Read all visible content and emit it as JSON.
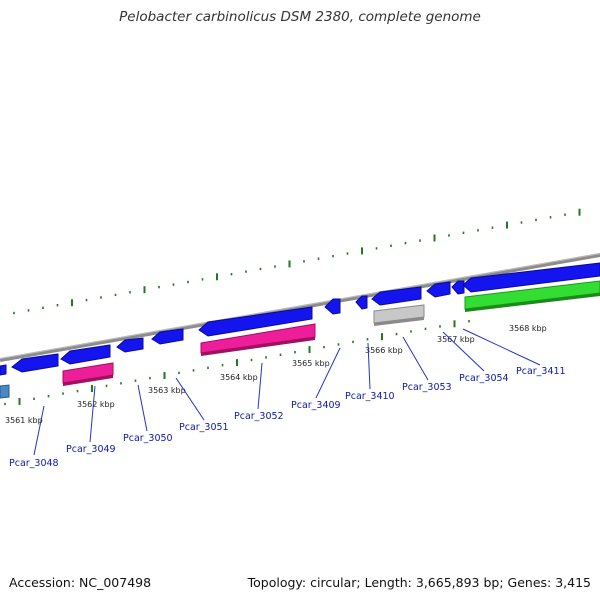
{
  "title": "Pelobacter carbinolicus DSM 2380, complete genome",
  "footer": {
    "accession": "Accession: NC_007498",
    "topology": "Topology: circular; Length: 3,665,893 bp; Genes: 3,415"
  },
  "colors": {
    "backbone": "#8c8c8c",
    "tick": "#1f7a1f",
    "forward_gene": "#33dd33",
    "reverse_gene": "#1414ee",
    "rna_gene": "#ee1e9a",
    "pseudo_gene": "#c8c8c8",
    "label_line": "#2233cc",
    "edge_gene": "#4a87c4"
  },
  "kbp_labels": [
    "3561 kbp",
    "3562 kbp",
    "3563 kbp",
    "3564 kbp",
    "3565 kbp",
    "3566 kbp",
    "3567 kbp",
    "3568 kbp"
  ],
  "genes": [
    {
      "name": "Pcar_3048",
      "type": "reverse",
      "label": "Pcar_3048"
    },
    {
      "name": "Pcar_3049",
      "type": "rna",
      "label": "Pcar_3049"
    },
    {
      "name": "Pcar_3050",
      "type": "reverse",
      "label": "Pcar_3050"
    },
    {
      "name": "Pcar_3051",
      "type": "reverse",
      "label": "Pcar_3051"
    },
    {
      "name": "Pcar_3052",
      "type": "rna",
      "label": "Pcar_3052"
    },
    {
      "name": "Pcar_3409",
      "type": "reverse",
      "label": "Pcar_3409"
    },
    {
      "name": "Pcar_3410",
      "type": "reverse",
      "label": "Pcar_3410"
    },
    {
      "name": "Pcar_3053",
      "type": "pseudo",
      "label": "Pcar_3053"
    },
    {
      "name": "Pcar_3054",
      "type": "reverse",
      "label": "Pcar_3054"
    },
    {
      "name": "Pcar_3411",
      "type": "reverse",
      "label": "Pcar_3411"
    }
  ]
}
